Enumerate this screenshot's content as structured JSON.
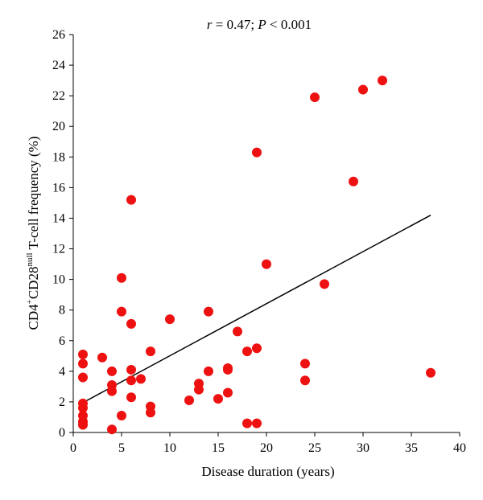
{
  "chart_data": {
    "type": "scatter",
    "annotation": {
      "r_symbol": "r",
      "r_text": " = 0.47; ",
      "p_symbol": "P",
      "p_text": " < 0.001"
    },
    "xlabel": "Disease duration (years)",
    "ylabel": {
      "part1": "CD4",
      "sup1": "+",
      "part2": "CD28",
      "sup2": "null",
      "part3": " T-cell frequency (%)"
    },
    "xlim": [
      0,
      40
    ],
    "ylim": [
      0,
      26
    ],
    "x_ticks": [
      0,
      5,
      10,
      15,
      20,
      25,
      30,
      35,
      40
    ],
    "y_ticks": [
      0,
      2,
      4,
      6,
      8,
      10,
      12,
      14,
      16,
      18,
      20,
      22,
      24,
      26
    ],
    "grid": false,
    "legend": "none",
    "point_color": "#ee1111",
    "points": [
      {
        "x": 1,
        "y": 5.1
      },
      {
        "x": 1,
        "y": 4.5
      },
      {
        "x": 1,
        "y": 3.6
      },
      {
        "x": 1,
        "y": 1.9
      },
      {
        "x": 1,
        "y": 1.6
      },
      {
        "x": 1,
        "y": 1.1
      },
      {
        "x": 1,
        "y": 0.7
      },
      {
        "x": 1,
        "y": 0.5
      },
      {
        "x": 3,
        "y": 4.9
      },
      {
        "x": 4,
        "y": 4.0
      },
      {
        "x": 4,
        "y": 3.1
      },
      {
        "x": 4,
        "y": 2.7
      },
      {
        "x": 4,
        "y": 0.2
      },
      {
        "x": 5,
        "y": 10.1
      },
      {
        "x": 5,
        "y": 7.9
      },
      {
        "x": 5,
        "y": 1.1
      },
      {
        "x": 6,
        "y": 15.2
      },
      {
        "x": 6,
        "y": 7.1
      },
      {
        "x": 6,
        "y": 4.1
      },
      {
        "x": 6,
        "y": 3.4
      },
      {
        "x": 6,
        "y": 2.3
      },
      {
        "x": 7,
        "y": 3.5
      },
      {
        "x": 8,
        "y": 5.3
      },
      {
        "x": 8,
        "y": 1.7
      },
      {
        "x": 8,
        "y": 1.3
      },
      {
        "x": 10,
        "y": 7.4
      },
      {
        "x": 12,
        "y": 2.1
      },
      {
        "x": 13,
        "y": 3.2
      },
      {
        "x": 13,
        "y": 2.8
      },
      {
        "x": 14,
        "y": 7.9
      },
      {
        "x": 14,
        "y": 4.0
      },
      {
        "x": 15,
        "y": 2.2
      },
      {
        "x": 16,
        "y": 4.2
      },
      {
        "x": 16,
        "y": 4.1
      },
      {
        "x": 16,
        "y": 2.6
      },
      {
        "x": 17,
        "y": 6.6
      },
      {
        "x": 18,
        "y": 5.3
      },
      {
        "x": 18,
        "y": 0.6
      },
      {
        "x": 19,
        "y": 18.3
      },
      {
        "x": 19,
        "y": 5.5
      },
      {
        "x": 19,
        "y": 0.6
      },
      {
        "x": 20,
        "y": 11.0
      },
      {
        "x": 24,
        "y": 4.5
      },
      {
        "x": 24,
        "y": 3.4
      },
      {
        "x": 25,
        "y": 21.9
      },
      {
        "x": 26,
        "y": 9.7
      },
      {
        "x": 29,
        "y": 16.4
      },
      {
        "x": 30,
        "y": 22.4
      },
      {
        "x": 32,
        "y": 23.0
      },
      {
        "x": 37,
        "y": 3.9
      }
    ],
    "trendline": {
      "x1": 1,
      "y1": 1.95,
      "x2": 37,
      "y2": 14.2
    }
  }
}
